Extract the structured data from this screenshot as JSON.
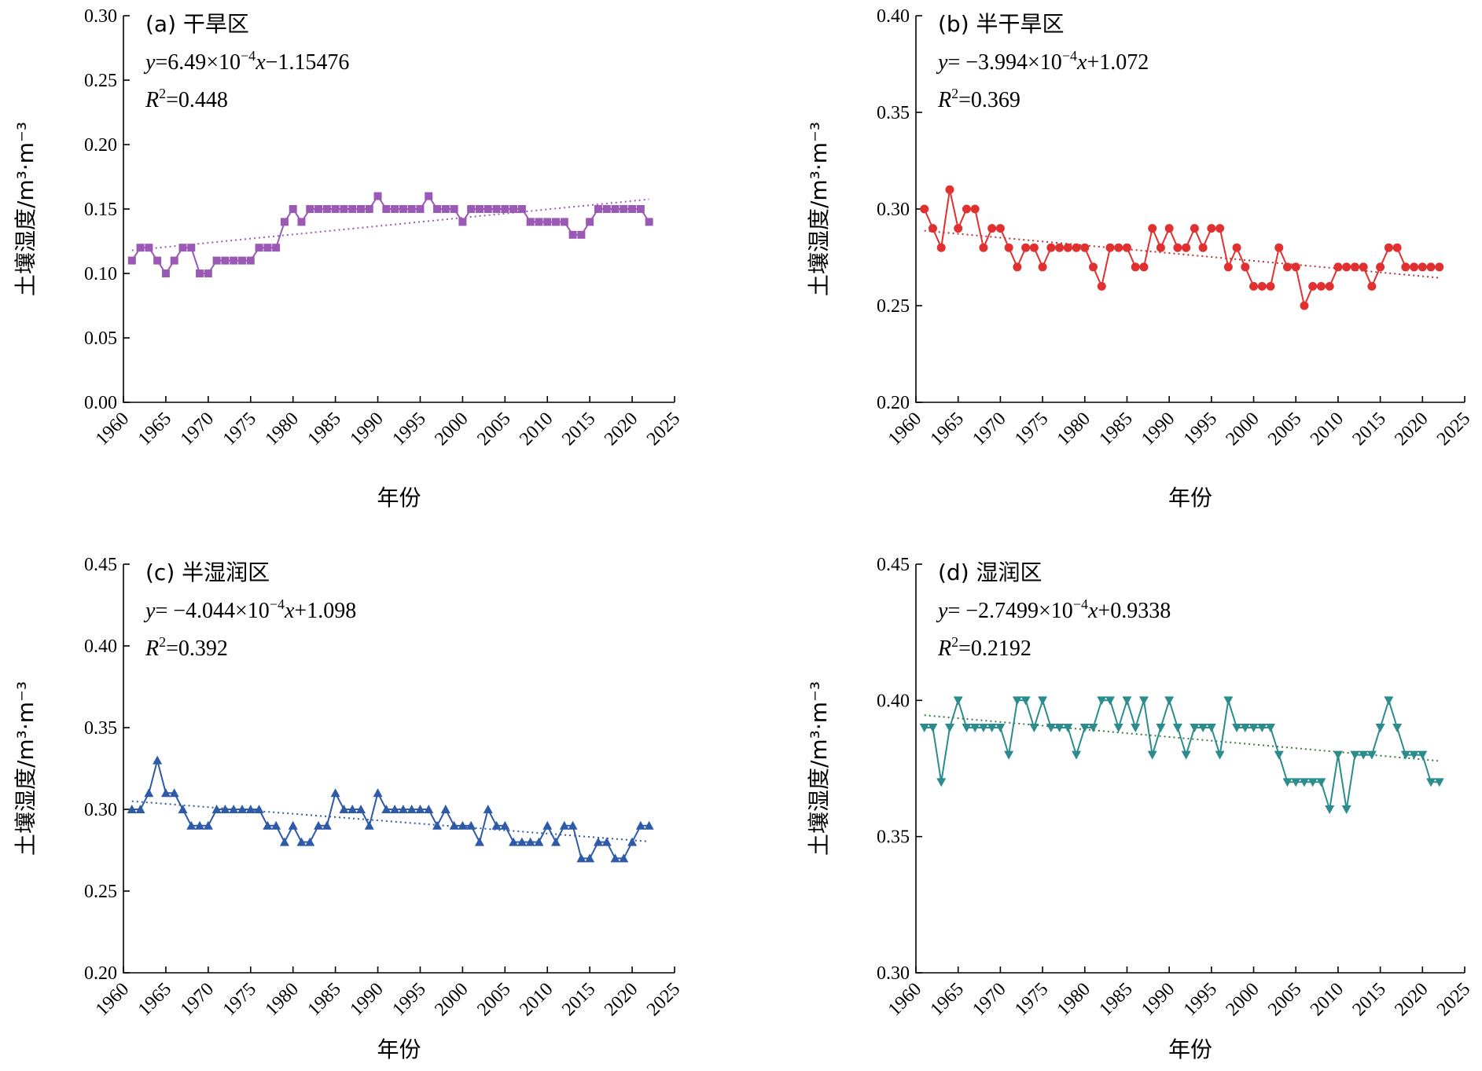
{
  "chart_data": [
    {
      "id": "a",
      "type": "line",
      "title": "(a) 干旱区",
      "equation_y": "y",
      "equation_rest": "=6.49×10",
      "equation_exp": "−4",
      "equation_x": "x",
      "equation_tail": "−1.15476",
      "r2_prefix": "R",
      "r2_sup": "2",
      "r2_value": "=0.448",
      "xlabel": "年份",
      "ylabel": "土壤湿度/m³·m⁻³",
      "xlim": [
        1960,
        2025
      ],
      "ylim": [
        0.0,
        0.3
      ],
      "xticks": [
        1960,
        1965,
        1970,
        1975,
        1980,
        1985,
        1990,
        1995,
        2000,
        2005,
        2010,
        2015,
        2020,
        2025
      ],
      "yticks": [
        "0.00",
        "0.05",
        "0.10",
        "0.15",
        "0.20",
        "0.25",
        "0.30"
      ],
      "marker": "square",
      "color": "#9B59B6",
      "trend_color": "#9B59B6",
      "trend": {
        "slope": 0.000649,
        "intercept": -1.15476
      },
      "x": [
        1961,
        1962,
        1963,
        1964,
        1965,
        1966,
        1967,
        1968,
        1969,
        1970,
        1971,
        1972,
        1973,
        1974,
        1975,
        1976,
        1977,
        1978,
        1979,
        1980,
        1981,
        1982,
        1983,
        1984,
        1985,
        1986,
        1987,
        1988,
        1989,
        1990,
        1991,
        1992,
        1993,
        1994,
        1995,
        1996,
        1997,
        1998,
        1999,
        2000,
        2001,
        2002,
        2003,
        2004,
        2005,
        2006,
        2007,
        2008,
        2009,
        2010,
        2011,
        2012,
        2013,
        2014,
        2015,
        2016,
        2017,
        2018,
        2019,
        2020,
        2021,
        2022
      ],
      "y": [
        0.11,
        0.12,
        0.12,
        0.11,
        0.1,
        0.11,
        0.12,
        0.12,
        0.1,
        0.1,
        0.11,
        0.11,
        0.11,
        0.11,
        0.11,
        0.12,
        0.12,
        0.12,
        0.14,
        0.15,
        0.14,
        0.15,
        0.15,
        0.15,
        0.15,
        0.15,
        0.15,
        0.15,
        0.15,
        0.16,
        0.15,
        0.15,
        0.15,
        0.15,
        0.15,
        0.16,
        0.15,
        0.15,
        0.15,
        0.14,
        0.15,
        0.15,
        0.15,
        0.15,
        0.15,
        0.15,
        0.15,
        0.14,
        0.14,
        0.14,
        0.14,
        0.14,
        0.13,
        0.13,
        0.14,
        0.15,
        0.15,
        0.15,
        0.15,
        0.15,
        0.15,
        0.14
      ]
    },
    {
      "id": "b",
      "type": "line",
      "title": "(b) 半干旱区",
      "equation_y": "y",
      "equation_rest": "= −3.994×10",
      "equation_exp": "−4",
      "equation_x": "x",
      "equation_tail": "+1.072",
      "r2_prefix": "R",
      "r2_sup": "2",
      "r2_value": "=0.369",
      "xlabel": "年份",
      "ylabel": "土壤湿度/m³·m⁻³",
      "xlim": [
        1960,
        2025
      ],
      "ylim": [
        0.2,
        0.4
      ],
      "xticks": [
        1960,
        1965,
        1970,
        1975,
        1980,
        1985,
        1990,
        1995,
        2000,
        2005,
        2010,
        2015,
        2020,
        2025
      ],
      "yticks": [
        "0.20",
        "0.25",
        "0.30",
        "0.35",
        "0.40"
      ],
      "marker": "circle",
      "color": "#E03030",
      "trend_color": "#C03030",
      "trend": {
        "slope": -0.0003994,
        "intercept": 1.072
      },
      "x": [
        1961,
        1962,
        1963,
        1964,
        1965,
        1966,
        1967,
        1968,
        1969,
        1970,
        1971,
        1972,
        1973,
        1974,
        1975,
        1976,
        1977,
        1978,
        1979,
        1980,
        1981,
        1982,
        1983,
        1984,
        1985,
        1986,
        1987,
        1988,
        1989,
        1990,
        1991,
        1992,
        1993,
        1994,
        1995,
        1996,
        1997,
        1998,
        1999,
        2000,
        2001,
        2002,
        2003,
        2004,
        2005,
        2006,
        2007,
        2008,
        2009,
        2010,
        2011,
        2012,
        2013,
        2014,
        2015,
        2016,
        2017,
        2018,
        2019,
        2020,
        2021,
        2022
      ],
      "y": [
        0.3,
        0.29,
        0.28,
        0.31,
        0.29,
        0.3,
        0.3,
        0.28,
        0.29,
        0.29,
        0.28,
        0.27,
        0.28,
        0.28,
        0.27,
        0.28,
        0.28,
        0.28,
        0.28,
        0.28,
        0.27,
        0.26,
        0.28,
        0.28,
        0.28,
        0.27,
        0.27,
        0.29,
        0.28,
        0.29,
        0.28,
        0.28,
        0.29,
        0.28,
        0.29,
        0.29,
        0.27,
        0.28,
        0.27,
        0.26,
        0.26,
        0.26,
        0.28,
        0.27,
        0.27,
        0.25,
        0.26,
        0.26,
        0.26,
        0.27,
        0.27,
        0.27,
        0.27,
        0.26,
        0.27,
        0.28,
        0.28,
        0.27,
        0.27,
        0.27,
        0.27,
        0.27
      ]
    },
    {
      "id": "c",
      "type": "line",
      "title": "(c) 半湿润区",
      "equation_y": "y",
      "equation_rest": "= −4.044×10",
      "equation_exp": "−4",
      "equation_x": "x",
      "equation_tail": "+1.098",
      "r2_prefix": "R",
      "r2_sup": "2",
      "r2_value": "=0.392",
      "xlabel": "年份",
      "ylabel": "土壤湿度/m³·m⁻³",
      "xlim": [
        1960,
        2025
      ],
      "ylim": [
        0.2,
        0.45
      ],
      "xticks": [
        1960,
        1965,
        1970,
        1975,
        1980,
        1985,
        1990,
        1995,
        2000,
        2005,
        2010,
        2015,
        2020,
        2025
      ],
      "yticks": [
        "0.20",
        "0.25",
        "0.30",
        "0.35",
        "0.40",
        "0.45"
      ],
      "marker": "triangle-up",
      "color": "#2E5AA8",
      "trend_color": "#2E5AA8",
      "trend": {
        "slope": -0.0004044,
        "intercept": 1.098
      },
      "x": [
        1961,
        1962,
        1963,
        1964,
        1965,
        1966,
        1967,
        1968,
        1969,
        1970,
        1971,
        1972,
        1973,
        1974,
        1975,
        1976,
        1977,
        1978,
        1979,
        1980,
        1981,
        1982,
        1983,
        1984,
        1985,
        1986,
        1987,
        1988,
        1989,
        1990,
        1991,
        1992,
        1993,
        1994,
        1995,
        1996,
        1997,
        1998,
        1999,
        2000,
        2001,
        2002,
        2003,
        2004,
        2005,
        2006,
        2007,
        2008,
        2009,
        2010,
        2011,
        2012,
        2013,
        2014,
        2015,
        2016,
        2017,
        2018,
        2019,
        2020,
        2021,
        2022
      ],
      "y": [
        0.3,
        0.3,
        0.31,
        0.33,
        0.31,
        0.31,
        0.3,
        0.29,
        0.29,
        0.29,
        0.3,
        0.3,
        0.3,
        0.3,
        0.3,
        0.3,
        0.29,
        0.29,
        0.28,
        0.29,
        0.28,
        0.28,
        0.29,
        0.29,
        0.31,
        0.3,
        0.3,
        0.3,
        0.29,
        0.31,
        0.3,
        0.3,
        0.3,
        0.3,
        0.3,
        0.3,
        0.29,
        0.3,
        0.29,
        0.29,
        0.29,
        0.28,
        0.3,
        0.29,
        0.29,
        0.28,
        0.28,
        0.28,
        0.28,
        0.29,
        0.28,
        0.29,
        0.29,
        0.27,
        0.27,
        0.28,
        0.28,
        0.27,
        0.27,
        0.28,
        0.29,
        0.29
      ]
    },
    {
      "id": "d",
      "type": "line",
      "title": "(d) 湿润区",
      "equation_y": "y",
      "equation_rest": "= −2.7499×10",
      "equation_exp": "−4",
      "equation_x": "x",
      "equation_tail": "+0.9338",
      "r2_prefix": "R",
      "r2_sup": "2",
      "r2_value": "=0.2192",
      "xlabel": "年份",
      "ylabel": "土壤湿度/m³·m⁻³",
      "xlim": [
        1960,
        2025
      ],
      "ylim": [
        0.3,
        0.45
      ],
      "xticks": [
        1960,
        1965,
        1970,
        1975,
        1980,
        1985,
        1990,
        1995,
        2000,
        2005,
        2010,
        2015,
        2020,
        2025
      ],
      "yticks": [
        "0.30",
        "0.35",
        "0.40",
        "0.45"
      ],
      "marker": "triangle-down",
      "color": "#2A8C8C",
      "trend_color": "#3C7A3C",
      "trend": {
        "slope": -0.00027499,
        "intercept": 0.9338
      },
      "x": [
        1961,
        1962,
        1963,
        1964,
        1965,
        1966,
        1967,
        1968,
        1969,
        1970,
        1971,
        1972,
        1973,
        1974,
        1975,
        1976,
        1977,
        1978,
        1979,
        1980,
        1981,
        1982,
        1983,
        1984,
        1985,
        1986,
        1987,
        1988,
        1989,
        1990,
        1991,
        1992,
        1993,
        1994,
        1995,
        1996,
        1997,
        1998,
        1999,
        2000,
        2001,
        2002,
        2003,
        2004,
        2005,
        2006,
        2007,
        2008,
        2009,
        2010,
        2011,
        2012,
        2013,
        2014,
        2015,
        2016,
        2017,
        2018,
        2019,
        2020,
        2021,
        2022
      ],
      "y": [
        0.39,
        0.39,
        0.37,
        0.39,
        0.4,
        0.39,
        0.39,
        0.39,
        0.39,
        0.39,
        0.38,
        0.4,
        0.4,
        0.39,
        0.4,
        0.39,
        0.39,
        0.39,
        0.38,
        0.39,
        0.39,
        0.4,
        0.4,
        0.39,
        0.4,
        0.39,
        0.4,
        0.38,
        0.39,
        0.4,
        0.39,
        0.38,
        0.39,
        0.39,
        0.39,
        0.38,
        0.4,
        0.39,
        0.39,
        0.39,
        0.39,
        0.39,
        0.38,
        0.37,
        0.37,
        0.37,
        0.37,
        0.37,
        0.36,
        0.38,
        0.36,
        0.38,
        0.38,
        0.38,
        0.39,
        0.4,
        0.39,
        0.38,
        0.38,
        0.38,
        0.37,
        0.37
      ]
    }
  ]
}
